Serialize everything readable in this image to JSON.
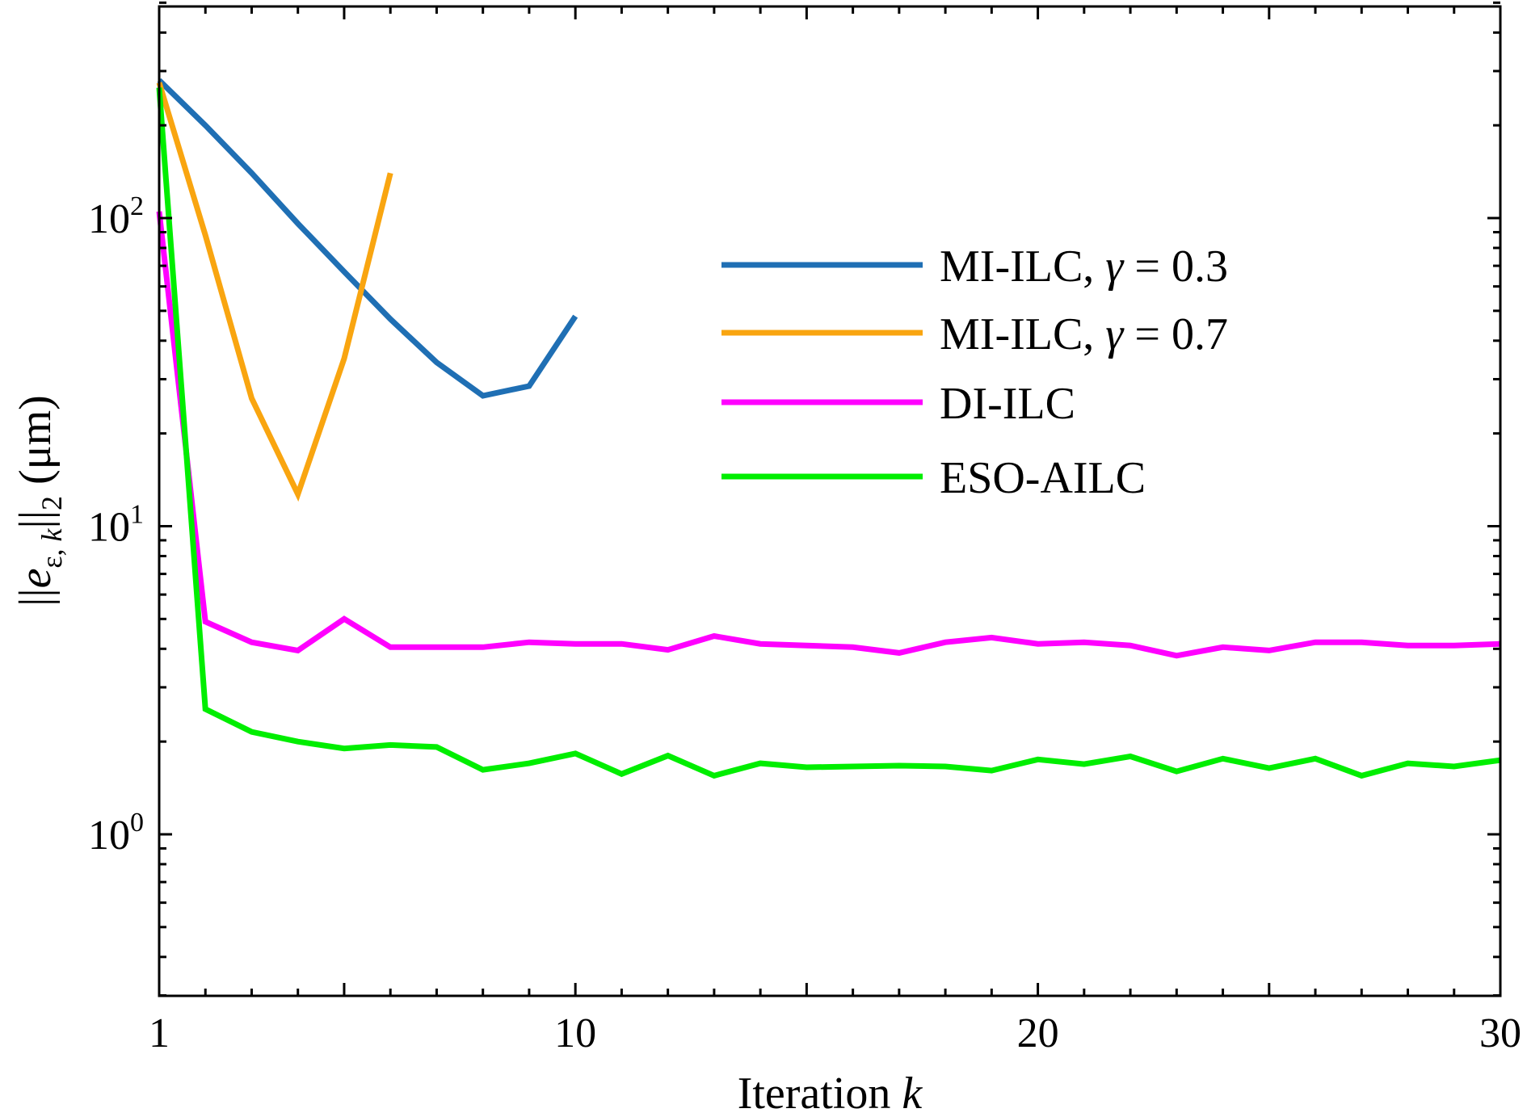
{
  "chart_data": {
    "type": "line",
    "title": "",
    "xlabel": "Iteration k",
    "ylabel": "||e_{ε,k}||_2 (μm)",
    "xlim": [
      1,
      30
    ],
    "ylim": [
      0.3,
      500
    ],
    "yscale": "log",
    "x_ticks": [
      {
        "value": 1,
        "label": "1"
      },
      {
        "value": 10,
        "label": "10"
      },
      {
        "value": 20,
        "label": "20"
      },
      {
        "value": 30,
        "label": "30"
      }
    ],
    "y_ticks": [
      {
        "value": 1,
        "base": "10",
        "exp": "0"
      },
      {
        "value": 10,
        "base": "10",
        "exp": "1"
      },
      {
        "value": 100,
        "base": "10",
        "exp": "2"
      }
    ],
    "grid": false,
    "legend_position": "upper-right",
    "series": [
      {
        "name": "MI-ILC, γ = 0.3",
        "legend_prefix": "MI-ILC, ",
        "legend_symbol": "γ",
        "legend_suffix": " = 0.3",
        "color": "#1f6fb4",
        "x": [
          1,
          2,
          3,
          4,
          5,
          6,
          7,
          8,
          9,
          10
        ],
        "y": [
          280,
          200,
          140,
          96,
          67,
          47,
          34,
          26.5,
          28.5,
          48
        ]
      },
      {
        "name": "MI-ILC, γ = 0.7",
        "legend_prefix": "MI-ILC, ",
        "legend_symbol": "γ",
        "legend_suffix": " = 0.7",
        "color": "#f9a510",
        "x": [
          1,
          2,
          3,
          4,
          5,
          6
        ],
        "y": [
          275,
          88,
          26,
          12.7,
          35,
          140
        ]
      },
      {
        "name": "DI-ILC",
        "legend_prefix": "DI-ILC",
        "legend_symbol": "",
        "legend_suffix": "",
        "color": "#ff00ff",
        "x": [
          1,
          2,
          3,
          4,
          5,
          6,
          7,
          8,
          9,
          10,
          11,
          12,
          13,
          14,
          15,
          16,
          17,
          18,
          19,
          20,
          21,
          22,
          23,
          24,
          25,
          26,
          27,
          28,
          29,
          30
        ],
        "y": [
          105,
          4.9,
          4.2,
          3.95,
          5.0,
          4.05,
          4.05,
          4.05,
          4.2,
          4.15,
          4.15,
          3.97,
          4.4,
          4.15,
          4.1,
          4.05,
          3.88,
          4.2,
          4.35,
          4.15,
          4.2,
          4.1,
          3.8,
          4.05,
          3.95,
          4.2,
          4.2,
          4.1,
          4.1,
          4.15
        ]
      },
      {
        "name": "ESO-AILC",
        "legend_prefix": "ESO-AILC",
        "legend_symbol": "",
        "legend_suffix": "",
        "color": "#00ee00",
        "x": [
          1,
          2,
          3,
          4,
          5,
          6,
          7,
          8,
          9,
          10,
          11,
          12,
          13,
          14,
          15,
          16,
          17,
          18,
          19,
          20,
          21,
          22,
          23,
          24,
          25,
          26,
          27,
          28,
          29,
          30
        ],
        "y": [
          265,
          2.55,
          2.15,
          2.0,
          1.9,
          1.95,
          1.92,
          1.62,
          1.7,
          1.83,
          1.57,
          1.8,
          1.55,
          1.7,
          1.65,
          1.66,
          1.67,
          1.66,
          1.61,
          1.75,
          1.69,
          1.79,
          1.6,
          1.76,
          1.64,
          1.76,
          1.55,
          1.7,
          1.66,
          1.74
        ]
      }
    ]
  }
}
